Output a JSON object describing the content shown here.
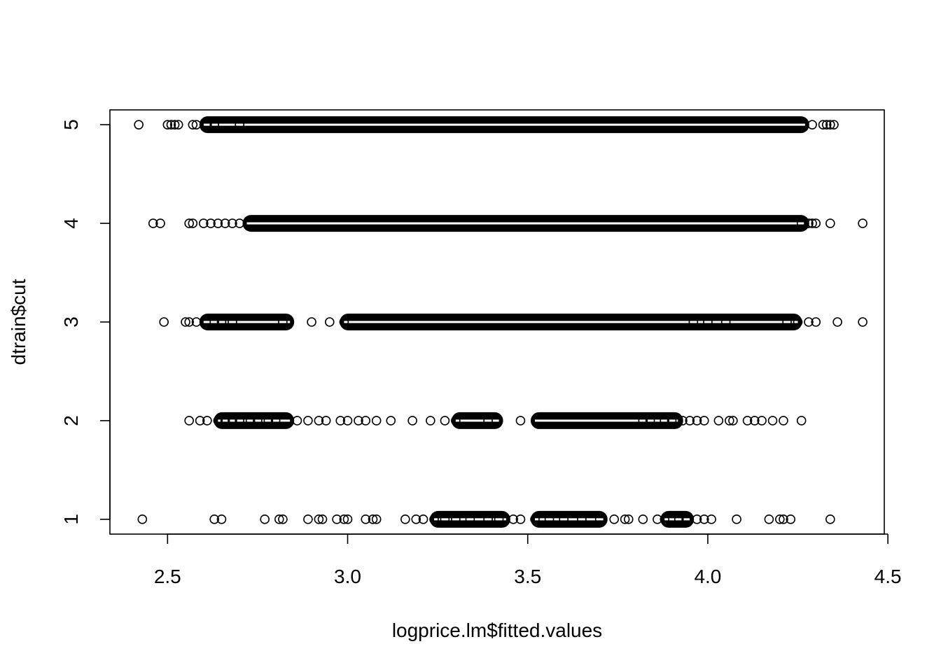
{
  "chart_data": {
    "type": "scatter",
    "title": "",
    "xlabel": "logprice.lm$fitted.values",
    "ylabel": "dtrain$cut",
    "xlim": [
      2.34,
      4.49
    ],
    "ylim": [
      0.85,
      5.15
    ],
    "x_ticks": [
      2.5,
      3.0,
      3.5,
      4.0,
      4.5
    ],
    "x_tick_labels": [
      "2.5",
      "3.0",
      "3.5",
      "4.0",
      "4.5"
    ],
    "y_ticks": [
      1,
      2,
      3,
      4,
      5
    ],
    "y_tick_labels": [
      "1",
      "2",
      "3",
      "4",
      "5"
    ],
    "grid": false,
    "marker": "open-circle",
    "color": "#000000",
    "series": [
      {
        "y": 5,
        "isolated_x": [
          2.42,
          2.5,
          2.51,
          2.52,
          2.53,
          2.57,
          2.58,
          2.61,
          2.63,
          2.7,
          4.29,
          4.32,
          4.33,
          4.34,
          4.35
        ],
        "dense_ranges": [
          [
            2.6,
            4.27
          ]
        ]
      },
      {
        "y": 4,
        "isolated_x": [
          2.46,
          2.48,
          2.56,
          2.57,
          2.6,
          2.62,
          2.64,
          2.66,
          2.68,
          2.7,
          4.26,
          4.28,
          4.29,
          4.3,
          4.34,
          4.43
        ],
        "dense_ranges": [
          [
            2.72,
            4.27
          ]
        ]
      },
      {
        "y": 3,
        "isolated_x": [
          2.49,
          2.55,
          2.56,
          2.58,
          2.63,
          2.65,
          2.68,
          2.82,
          2.9,
          2.95,
          2.99,
          3.96,
          4.0,
          4.05,
          4.22,
          4.25,
          4.28,
          4.3,
          4.36,
          4.43
        ],
        "dense_ranges": [
          [
            2.6,
            2.84
          ],
          [
            2.99,
            4.25
          ]
        ]
      },
      {
        "y": 2,
        "isolated_x": [
          2.56,
          2.59,
          2.61,
          2.64,
          2.66,
          2.68,
          2.7,
          2.73,
          2.75,
          2.78,
          2.8,
          2.86,
          2.89,
          2.92,
          2.94,
          2.98,
          3.0,
          3.03,
          3.05,
          3.08,
          3.12,
          3.18,
          3.23,
          3.27,
          3.3,
          3.39,
          3.48,
          3.82,
          3.84,
          3.88,
          3.9,
          3.93,
          3.95,
          3.97,
          3.99,
          4.03,
          4.06,
          4.07,
          4.11,
          4.13,
          4.15,
          4.18,
          4.21,
          4.26
        ],
        "dense_ranges": [
          [
            2.64,
            2.84
          ],
          [
            3.3,
            3.42
          ],
          [
            3.52,
            3.92
          ]
        ]
      },
      {
        "y": 1,
        "isolated_x": [
          2.43,
          2.63,
          2.65,
          2.77,
          2.81,
          2.82,
          2.89,
          2.92,
          2.93,
          2.97,
          2.99,
          3.0,
          3.05,
          3.07,
          3.08,
          3.16,
          3.19,
          3.21,
          3.24,
          3.27,
          3.3,
          3.34,
          3.39,
          3.42,
          3.46,
          3.48,
          3.52,
          3.56,
          3.6,
          3.65,
          3.7,
          3.74,
          3.77,
          3.78,
          3.82,
          3.86,
          3.88,
          3.92,
          3.94,
          3.97,
          3.99,
          4.01,
          4.08,
          4.17,
          4.2,
          4.21,
          4.23,
          4.34
        ],
        "dense_ranges": [
          [
            3.24,
            3.44
          ],
          [
            3.52,
            3.71
          ],
          [
            3.88,
            3.95
          ]
        ]
      }
    ]
  }
}
